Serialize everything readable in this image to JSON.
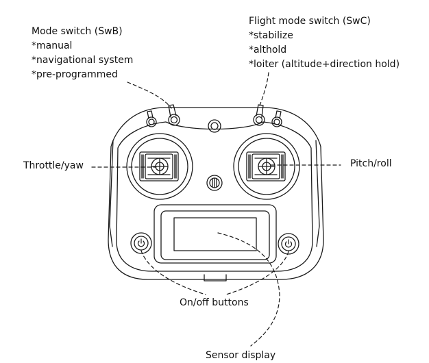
{
  "labels": {
    "mode_switch": {
      "title": "Mode switch (SwB)",
      "options": [
        "*manual",
        "*navigational system",
        "*pre-programmed"
      ]
    },
    "flight_mode_switch": {
      "title": "Flight mode switch (SwC)",
      "options": [
        "*stabilize",
        "*althold",
        "*loiter (altitude+direction hold)"
      ]
    },
    "throttle_yaw": "Throttle/yaw",
    "pitch_roll": "Pitch/roll",
    "on_off_buttons": "On/off buttons",
    "sensor_display": "Sensor display"
  },
  "colors": {
    "line": "#1a1a1a",
    "background": "#ffffff"
  }
}
